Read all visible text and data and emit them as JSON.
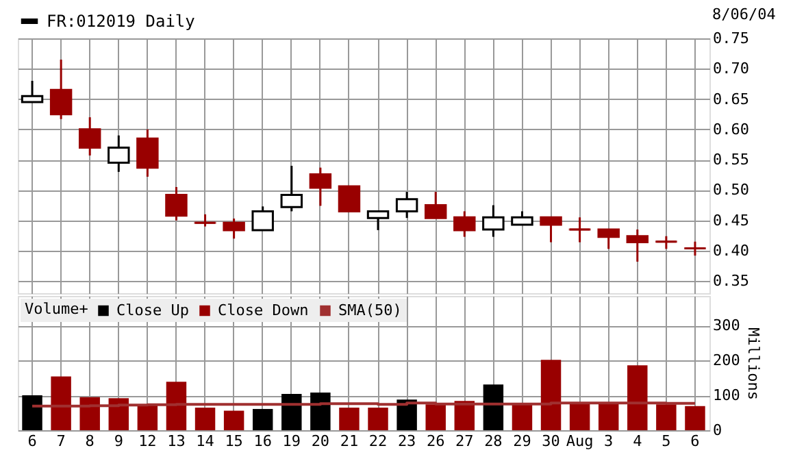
{
  "chart_data": [
    {
      "type": "candlestick",
      "legend": "top",
      "tick_labels": "y",
      "grid": true,
      "annotations": [
        "8/06/04"
      ],
      "ylim": [
        0.33,
        0.75
      ],
      "yticks": [
        0.35,
        {
          "value": 0.4,
          "label": "0.40"
        },
        0.45,
        {
          "value": 0.5,
          "label": "0.50"
        },
        0.55,
        {
          "value": 0.6,
          "label": "0.60"
        },
        0.65,
        {
          "value": 0.7,
          "label": "0.70"
        },
        0.75
      ],
      "series": [
        {
          "name": "FR:012019 Daily",
          "color": "#000000",
          "ohlc": [
            [
              0.645,
              0.68,
              0.645,
              0.655
            ],
            [
              0.665,
              0.715,
              0.617,
              0.625
            ],
            [
              0.6,
              0.62,
              0.557,
              0.57
            ],
            [
              0.545,
              0.59,
              0.53,
              0.57
            ],
            [
              0.585,
              0.6,
              0.522,
              0.537
            ],
            [
              0.492,
              0.505,
              0.45,
              0.458
            ],
            [
              0.446,
              0.46,
              0.44,
              0.446
            ],
            [
              0.446,
              0.453,
              0.42,
              0.434
            ],
            [
              0.434,
              0.473,
              0.434,
              0.465
            ],
            [
              0.472,
              0.54,
              0.465,
              0.492
            ],
            [
              0.526,
              0.537,
              0.474,
              0.504
            ],
            [
              0.506,
              0.506,
              0.465,
              0.465
            ],
            [
              0.454,
              0.465,
              0.434,
              0.465
            ],
            [
              0.465,
              0.497,
              0.454,
              0.485
            ],
            [
              0.475,
              0.497,
              0.454,
              0.454
            ],
            [
              0.455,
              0.465,
              0.423,
              0.434
            ],
            [
              0.435,
              0.475,
              0.423,
              0.455
            ],
            [
              0.443,
              0.465,
              0.443,
              0.455
            ],
            [
              0.455,
              0.455,
              0.414,
              0.443
            ],
            [
              0.435,
              0.455,
              0.414,
              0.435
            ],
            [
              0.435,
              0.435,
              0.403,
              0.423
            ],
            [
              0.424,
              0.435,
              0.382,
              0.414
            ],
            [
              0.415,
              0.424,
              0.403,
              0.415
            ],
            [
              0.404,
              0.415,
              0.392,
              0.404
            ]
          ],
          "colors": [
            "#ffffff",
            "#990000",
            "#990000",
            "#ffffff",
            "#990000",
            "#990000",
            "#990000",
            "#990000",
            "#ffffff",
            "#ffffff",
            "#990000",
            "#990000",
            "#ffffff",
            "#ffffff",
            "#990000",
            "#990000",
            "#ffffff",
            "#ffffff",
            "#990000",
            "#990000",
            "#990000",
            "#990000",
            "#990000",
            "#990000"
          ]
        }
      ]
    },
    {
      "type": "bar",
      "legend": "top left",
      "legend_title": "Volume+",
      "grid": true,
      "ylabel": "Millions",
      "categories": [
        "6",
        "7",
        "8",
        "9",
        "12",
        "13",
        "14",
        "15",
        "16",
        "19",
        "20",
        "21",
        "22",
        "23",
        "26",
        "27",
        "28",
        "29",
        "30",
        "Aug",
        "3",
        "4",
        "5",
        "6"
      ],
      "ylim": [
        0,
        385
      ],
      "yticks": [
        0,
        100,
        200,
        300
      ],
      "series": [
        {
          "name": "Close Up",
          "color": "#000000",
          "values": [
            100,
            null,
            null,
            null,
            null,
            null,
            null,
            null,
            61,
            104,
            108,
            null,
            null,
            88,
            null,
            null,
            131,
            null,
            null,
            null,
            null,
            null,
            null,
            null
          ]
        },
        {
          "name": "Close Down",
          "color": "#990000",
          "values": [
            null,
            154,
            95,
            92,
            74,
            139,
            65,
            56,
            null,
            null,
            null,
            65,
            65,
            null,
            74,
            84,
            null,
            74,
            202,
            76,
            76,
            186,
            74,
            69
          ]
        },
        {
          "name": "SMA(50)",
          "type": "line",
          "color": "#a03030",
          "values": [
            69,
            69,
            70,
            72,
            73,
            74,
            74,
            74,
            74,
            74,
            76,
            76,
            74,
            78,
            75,
            75,
            75,
            75,
            78,
            78,
            78,
            78,
            77,
            77
          ]
        }
      ]
    }
  ]
}
